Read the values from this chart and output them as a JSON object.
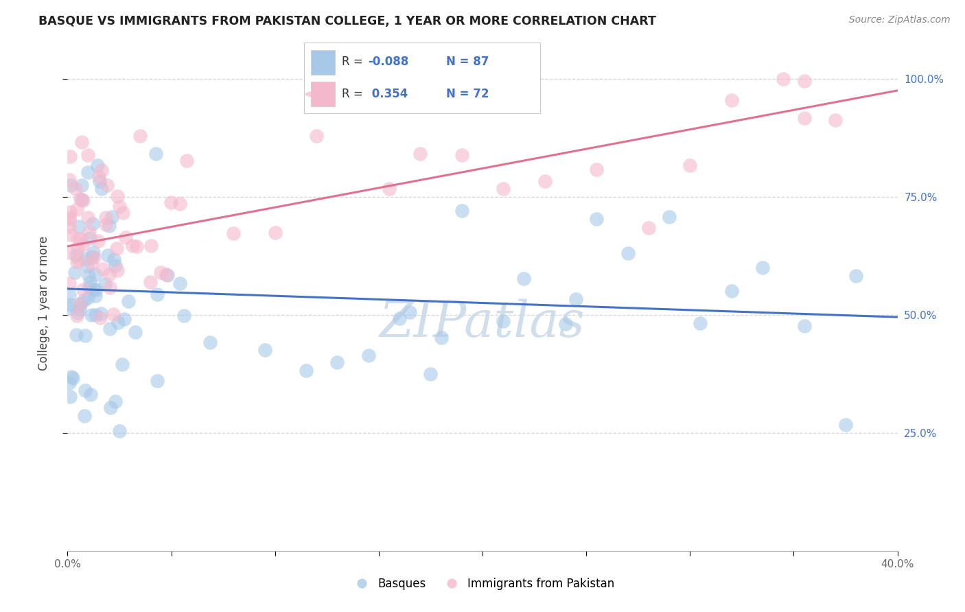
{
  "title": "BASQUE VS IMMIGRANTS FROM PAKISTAN COLLEGE, 1 YEAR OR MORE CORRELATION CHART",
  "source": "Source: ZipAtlas.com",
  "ylabel": "College, 1 year or more",
  "xlim": [
    0.0,
    0.4
  ],
  "ylim": [
    0.0,
    1.05
  ],
  "legend_r_blue": "-0.088",
  "legend_n_blue": "87",
  "legend_r_pink": "0.354",
  "legend_n_pink": "72",
  "blue_color": "#a8c8e8",
  "pink_color": "#f4b8cc",
  "blue_line_color": "#4472c4",
  "pink_line_color": "#e07090",
  "watermark_text": "ZIPatlas",
  "watermark_color": "#c8d8e8",
  "background_color": "#ffffff",
  "grid_color": "#cccccc",
  "blue_line_x0": 0.0,
  "blue_line_x1": 0.4,
  "blue_line_y0": 0.555,
  "blue_line_y1": 0.495,
  "pink_line_x0": 0.0,
  "pink_line_x1": 0.4,
  "pink_line_y0": 0.645,
  "pink_line_y1": 0.975
}
